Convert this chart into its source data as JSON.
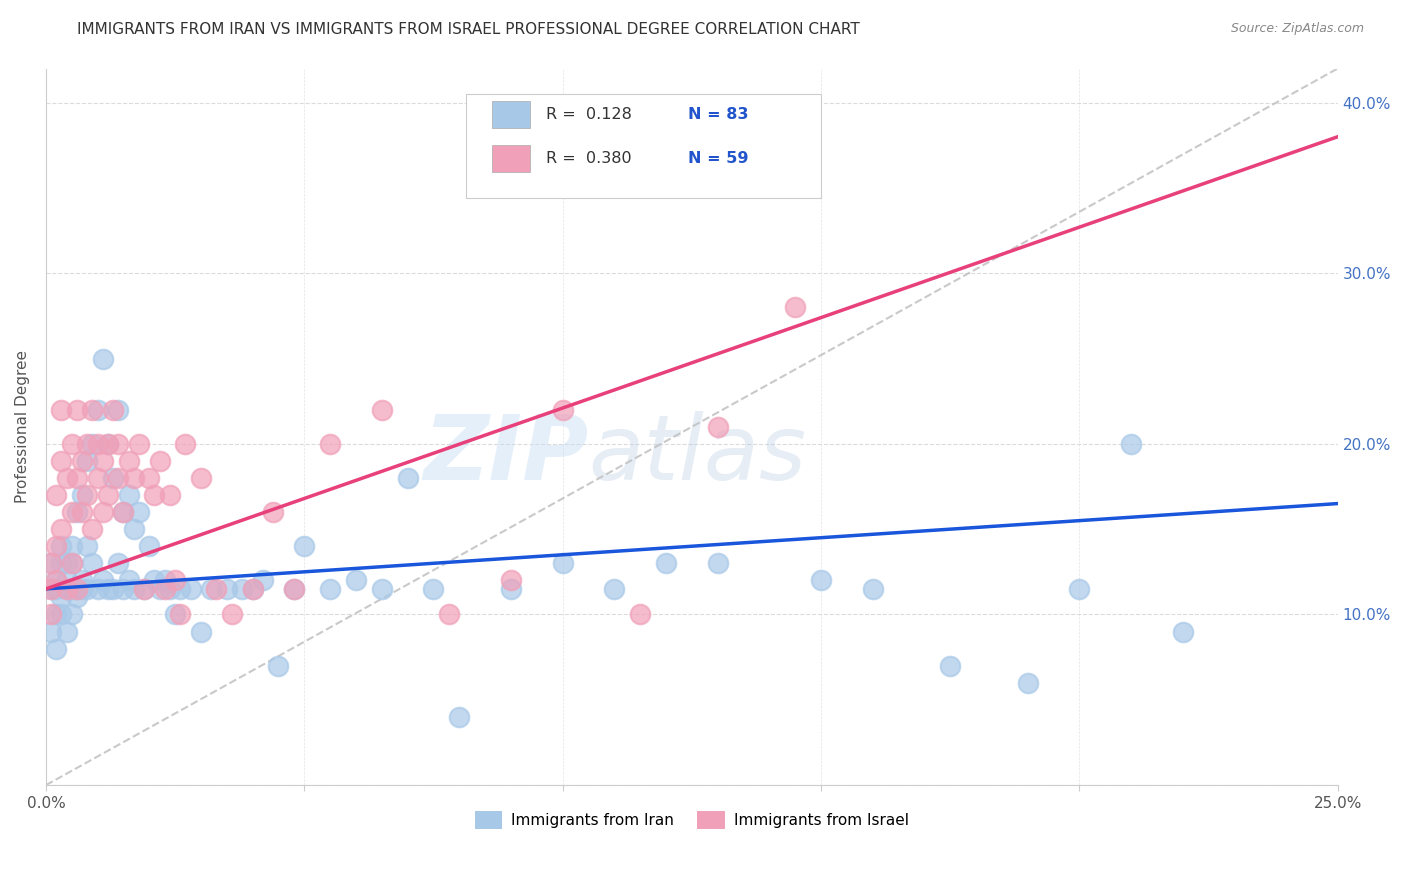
{
  "title": "IMMIGRANTS FROM IRAN VS IMMIGRANTS FROM ISRAEL PROFESSIONAL DEGREE CORRELATION CHART",
  "source": "Source: ZipAtlas.com",
  "ylabel": "Professional Degree",
  "xlim": [
    0.0,
    0.25
  ],
  "ylim": [
    0.0,
    0.42
  ],
  "iran_color": "#a8c8e8",
  "israel_color": "#f0a0b8",
  "iran_R": 0.128,
  "iran_N": 83,
  "israel_R": 0.38,
  "israel_N": 59,
  "iran_line_color": "#1a56db",
  "israel_line_color": "#e8407a",
  "diagonal_color": "#c0c0c0",
  "watermark_zip": "ZIP",
  "watermark_atlas": "atlas",
  "background_color": "#ffffff",
  "legend_iran_label": "Immigrants from Iran",
  "legend_israel_label": "Immigrants from Israel",
  "iran_line_x0": 0.0,
  "iran_line_y0": 0.115,
  "iran_line_x1": 0.25,
  "iran_line_y1": 0.165,
  "israel_line_x0": 0.0,
  "israel_line_y0": 0.115,
  "israel_line_x1": 0.25,
  "israel_line_y1": 0.38,
  "iran_scatter_x": [
    0.001,
    0.001,
    0.001,
    0.002,
    0.002,
    0.002,
    0.002,
    0.003,
    0.003,
    0.003,
    0.003,
    0.004,
    0.004,
    0.004,
    0.004,
    0.005,
    0.005,
    0.005,
    0.005,
    0.006,
    0.006,
    0.006,
    0.007,
    0.007,
    0.007,
    0.008,
    0.008,
    0.008,
    0.009,
    0.009,
    0.01,
    0.01,
    0.011,
    0.011,
    0.012,
    0.012,
    0.013,
    0.013,
    0.014,
    0.014,
    0.015,
    0.015,
    0.016,
    0.016,
    0.017,
    0.017,
    0.018,
    0.019,
    0.02,
    0.021,
    0.022,
    0.023,
    0.024,
    0.025,
    0.026,
    0.028,
    0.03,
    0.032,
    0.035,
    0.038,
    0.04,
    0.042,
    0.045,
    0.048,
    0.05,
    0.055,
    0.06,
    0.065,
    0.07,
    0.075,
    0.08,
    0.09,
    0.1,
    0.11,
    0.12,
    0.13,
    0.15,
    0.16,
    0.175,
    0.19,
    0.2,
    0.21,
    0.22
  ],
  "iran_scatter_y": [
    0.115,
    0.09,
    0.13,
    0.1,
    0.12,
    0.115,
    0.08,
    0.13,
    0.11,
    0.14,
    0.1,
    0.115,
    0.13,
    0.09,
    0.12,
    0.115,
    0.14,
    0.1,
    0.13,
    0.115,
    0.16,
    0.11,
    0.17,
    0.115,
    0.12,
    0.19,
    0.14,
    0.115,
    0.2,
    0.13,
    0.22,
    0.115,
    0.25,
    0.12,
    0.2,
    0.115,
    0.18,
    0.115,
    0.22,
    0.13,
    0.16,
    0.115,
    0.17,
    0.12,
    0.15,
    0.115,
    0.16,
    0.115,
    0.14,
    0.12,
    0.115,
    0.12,
    0.115,
    0.1,
    0.115,
    0.115,
    0.09,
    0.115,
    0.115,
    0.115,
    0.115,
    0.12,
    0.07,
    0.115,
    0.14,
    0.115,
    0.12,
    0.115,
    0.18,
    0.115,
    0.04,
    0.115,
    0.13,
    0.115,
    0.13,
    0.13,
    0.12,
    0.115,
    0.07,
    0.06,
    0.115,
    0.2,
    0.09
  ],
  "israel_scatter_x": [
    0.001,
    0.001,
    0.001,
    0.002,
    0.002,
    0.002,
    0.003,
    0.003,
    0.003,
    0.004,
    0.004,
    0.005,
    0.005,
    0.005,
    0.006,
    0.006,
    0.006,
    0.007,
    0.007,
    0.008,
    0.008,
    0.009,
    0.009,
    0.01,
    0.01,
    0.011,
    0.011,
    0.012,
    0.012,
    0.013,
    0.014,
    0.014,
    0.015,
    0.016,
    0.017,
    0.018,
    0.019,
    0.02,
    0.021,
    0.022,
    0.023,
    0.024,
    0.025,
    0.026,
    0.027,
    0.03,
    0.033,
    0.036,
    0.04,
    0.044,
    0.048,
    0.055,
    0.065,
    0.078,
    0.09,
    0.1,
    0.115,
    0.13,
    0.145
  ],
  "israel_scatter_y": [
    0.115,
    0.13,
    0.1,
    0.17,
    0.12,
    0.14,
    0.19,
    0.15,
    0.22,
    0.18,
    0.115,
    0.2,
    0.16,
    0.13,
    0.22,
    0.18,
    0.115,
    0.19,
    0.16,
    0.2,
    0.17,
    0.22,
    0.15,
    0.18,
    0.2,
    0.16,
    0.19,
    0.2,
    0.17,
    0.22,
    0.18,
    0.2,
    0.16,
    0.19,
    0.18,
    0.2,
    0.115,
    0.18,
    0.17,
    0.19,
    0.115,
    0.17,
    0.12,
    0.1,
    0.2,
    0.18,
    0.115,
    0.1,
    0.115,
    0.16,
    0.115,
    0.2,
    0.22,
    0.1,
    0.12,
    0.22,
    0.1,
    0.21,
    0.28
  ]
}
